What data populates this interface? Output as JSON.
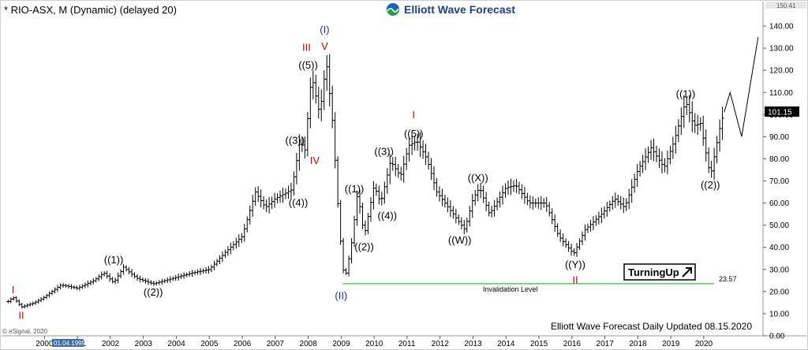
{
  "header": {
    "title": "* RIO-ASX, M (Dynamic) (delayed 20)",
    "logo_text": "Elliott Wave Forecast",
    "logo_icon": "globe-wave-icon"
  },
  "footer": {
    "update_text": "Elliott Wave Forecast Daily Updated 08.15.2020",
    "copyright": "© eSignal, 2020",
    "date_box": "01.04.1999"
  },
  "badge": {
    "text": "TurningUp",
    "icon": "arrow-up-right-icon"
  },
  "chart_data": {
    "type": "line",
    "title": "* RIO-ASX, M (Dynamic) (delayed 20)",
    "xlabel": "",
    "ylabel": "",
    "x_range": [
      1998.7,
      2021.75
    ],
    "ylim": [
      0,
      150
    ],
    "grid": false,
    "y_ticks": [
      0,
      10,
      20,
      30,
      40,
      50,
      60,
      70,
      80,
      90,
      100,
      110,
      120,
      130,
      140
    ],
    "y_tick_labels": [
      "0.00",
      "10.00",
      "20.00",
      "30.00",
      "40.00",
      "50.00",
      "60.00",
      "70.00",
      "80.00",
      "90.00",
      "100.00",
      "110.00",
      "120.00",
      "130.00",
      "140.00"
    ],
    "x_ticks": [
      2000,
      2001,
      2002,
      2003,
      2004,
      2005,
      2006,
      2007,
      2008,
      2009,
      2010,
      2011,
      2012,
      2013,
      2014,
      2015,
      2016,
      2017,
      2018,
      2019,
      2020
    ],
    "x_tick_labels": [
      "2000",
      "2001",
      "2002",
      "2003",
      "2004",
      "2005",
      "2006",
      "2007",
      "2008",
      "2009",
      "2010",
      "2011",
      "2012",
      "2013",
      "2014",
      "2015",
      "2016",
      "2017",
      "2018",
      "2019",
      "2020"
    ],
    "last_price": 101.15,
    "last_price_label": "101.15",
    "top_scale_label": "150.41",
    "series": [
      {
        "style": "ohlc-bars",
        "color": "#000000",
        "pivots": [
          [
            1998.9,
            15.5
          ],
          [
            1999.05,
            17.5
          ],
          [
            1999.3,
            13.0
          ],
          [
            1999.7,
            15.0
          ],
          [
            2000.0,
            17.5
          ],
          [
            2000.5,
            23.0
          ],
          [
            2001.0,
            21.5
          ],
          [
            2001.5,
            25.0
          ],
          [
            2001.8,
            28.5
          ],
          [
            2002.1,
            24.0
          ],
          [
            2002.4,
            31.0
          ],
          [
            2002.8,
            26.0
          ],
          [
            2003.3,
            23.5
          ],
          [
            2003.9,
            26.0
          ],
          [
            2004.5,
            28.5
          ],
          [
            2005.0,
            30.0
          ],
          [
            2005.5,
            38.0
          ],
          [
            2006.0,
            45.0
          ],
          [
            2006.4,
            65.0
          ],
          [
            2006.7,
            58.0
          ],
          [
            2007.0,
            62.0
          ],
          [
            2007.5,
            66.0
          ],
          [
            2007.75,
            88.0
          ],
          [
            2007.9,
            84.0
          ],
          [
            2008.1,
            118.0
          ],
          [
            2008.35,
            100.0
          ],
          [
            2008.55,
            124.0
          ],
          [
            2008.75,
            95.0
          ],
          [
            2008.95,
            48.0
          ],
          [
            2009.1,
            24.5
          ],
          [
            2009.3,
            40.0
          ],
          [
            2009.5,
            65.0
          ],
          [
            2009.7,
            45.0
          ],
          [
            2010.0,
            68.0
          ],
          [
            2010.2,
            60.0
          ],
          [
            2010.5,
            79.0
          ],
          [
            2010.8,
            72.0
          ],
          [
            2011.05,
            86.0
          ],
          [
            2011.3,
            88.0
          ],
          [
            2011.6,
            80.0
          ],
          [
            2011.9,
            65.0
          ],
          [
            2012.4,
            55.0
          ],
          [
            2012.75,
            48.0
          ],
          [
            2013.0,
            62.0
          ],
          [
            2013.2,
            67.0
          ],
          [
            2013.5,
            55.0
          ],
          [
            2014.0,
            67.0
          ],
          [
            2014.3,
            68.0
          ],
          [
            2014.7,
            60.0
          ],
          [
            2015.2,
            60.0
          ],
          [
            2015.6,
            45.0
          ],
          [
            2016.05,
            37.0
          ],
          [
            2016.4,
            48.0
          ],
          [
            2016.9,
            55.0
          ],
          [
            2017.3,
            62.0
          ],
          [
            2017.6,
            58.0
          ],
          [
            2018.0,
            75.0
          ],
          [
            2018.4,
            85.0
          ],
          [
            2018.8,
            76.0
          ],
          [
            2019.1,
            88.0
          ],
          [
            2019.45,
            106.0
          ],
          [
            2019.7,
            95.0
          ],
          [
            2019.9,
            96.0
          ],
          [
            2020.2,
            72.0
          ],
          [
            2020.5,
            95.0
          ],
          [
            2020.62,
            101.15
          ]
        ]
      },
      {
        "style": "projection",
        "color": "#000000",
        "points": [
          [
            2020.62,
            101.15
          ],
          [
            2020.8,
            110.0
          ],
          [
            2021.15,
            90.0
          ],
          [
            2021.65,
            135.0
          ]
        ]
      }
    ],
    "invalidation_line": {
      "value": 23.57,
      "label": "Invalidation Level",
      "value_label": "23.57",
      "color": "#35c035"
    },
    "wave_labels": [
      {
        "text": "I",
        "x": 1999.05,
        "y": 17.5,
        "color": "#cc0000",
        "pos": "above"
      },
      {
        "text": "II",
        "x": 1999.3,
        "y": 13.0,
        "color": "#cc0000",
        "pos": "below"
      },
      {
        "text": "((1))",
        "x": 2002.1,
        "y": 31.0,
        "color": "#000000",
        "pos": "above"
      },
      {
        "text": "((2))",
        "x": 2003.3,
        "y": 23.5,
        "color": "#000000",
        "pos": "below"
      },
      {
        "text": "((3))",
        "x": 2007.6,
        "y": 85.0,
        "color": "#000000",
        "pos": "above"
      },
      {
        "text": "((4))",
        "x": 2007.7,
        "y": 64.0,
        "color": "#000000",
        "pos": "below"
      },
      {
        "text": "IV",
        "x": 2008.2,
        "y": 83.0,
        "color": "#cc0000",
        "pos": "below"
      },
      {
        "text": "((5))",
        "x": 2008.0,
        "y": 119.0,
        "color": "#000000",
        "pos": "above"
      },
      {
        "text": "III",
        "x": 2007.95,
        "y": 127.0,
        "color": "#cc0000",
        "pos": "above"
      },
      {
        "text": "V",
        "x": 2008.5,
        "y": 127.5,
        "color": "#cc0000",
        "pos": "above"
      },
      {
        "text": "(I)",
        "x": 2008.5,
        "y": 135.0,
        "color": "#1f2ea8",
        "pos": "above"
      },
      {
        "text": "(II)",
        "x": 2009.0,
        "y": 22.0,
        "color": "#1f2ea8",
        "pos": "below"
      },
      {
        "text": "((1))",
        "x": 2009.4,
        "y": 63.0,
        "color": "#000000",
        "pos": "above"
      },
      {
        "text": "((2))",
        "x": 2009.7,
        "y": 44.0,
        "color": "#000000",
        "pos": "below"
      },
      {
        "text": "((3))",
        "x": 2010.3,
        "y": 80.0,
        "color": "#000000",
        "pos": "above"
      },
      {
        "text": "((4))",
        "x": 2010.4,
        "y": 58.0,
        "color": "#000000",
        "pos": "below"
      },
      {
        "text": "((5))",
        "x": 2011.2,
        "y": 88.0,
        "color": "#000000",
        "pos": "above"
      },
      {
        "text": "I",
        "x": 2011.2,
        "y": 96.5,
        "color": "#cc0000",
        "pos": "above"
      },
      {
        "text": "((X))",
        "x": 2013.15,
        "y": 68.0,
        "color": "#000000",
        "pos": "above"
      },
      {
        "text": "((W))",
        "x": 2012.6,
        "y": 47.0,
        "color": "#000000",
        "pos": "below"
      },
      {
        "text": "((Y))",
        "x": 2016.1,
        "y": 36.0,
        "color": "#000000",
        "pos": "below"
      },
      {
        "text": "II",
        "x": 2016.1,
        "y": 29.0,
        "color": "#cc0000",
        "pos": "below"
      },
      {
        "text": "((1))",
        "x": 2019.45,
        "y": 106.0,
        "color": "#000000",
        "pos": "above"
      },
      {
        "text": "((2))",
        "x": 2020.2,
        "y": 72.0,
        "color": "#000000",
        "pos": "below"
      }
    ]
  }
}
